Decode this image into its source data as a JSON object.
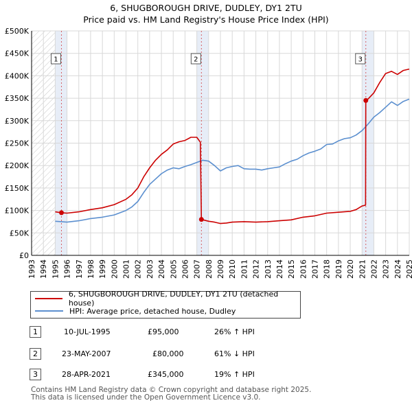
{
  "title": "6, SHUGBOROUGH DRIVE, DUDLEY, DY1 2TU",
  "subtitle": "Price paid vs. HM Land Registry's House Price Index (HPI)",
  "colors": {
    "property": "#cc0000",
    "hpi": "#5b8fcf",
    "grid": "#d8d8d8",
    "band": "#dde6f4",
    "marker": "#cc0000"
  },
  "legend": {
    "property": "6, SHUGBOROUGH DRIVE, DUDLEY, DY1 2TU (detached house)",
    "hpi": "HPI: Average price, detached house, Dudley"
  },
  "transactions": [
    {
      "num": "1",
      "date": "10-JUL-1995",
      "price": "£95,000",
      "hpi": "26% ↑ HPI"
    },
    {
      "num": "2",
      "date": "23-MAY-2007",
      "price": "£80,000",
      "hpi": "61% ↓ HPI"
    },
    {
      "num": "3",
      "date": "28-APR-2021",
      "price": "£345,000",
      "hpi": "19% ↑ HPI"
    }
  ],
  "footer": {
    "line1": "Contains HM Land Registry data © Crown copyright and database right 2025.",
    "line2": "This data is licensed under the Open Government Licence v3.0."
  },
  "chart_data": {
    "type": "line",
    "title": "6, SHUGBOROUGH DRIVE, DUDLEY, DY1 2TU",
    "subtitle": "Price paid vs. HM Land Registry's House Price Index (HPI)",
    "xlim": [
      1993,
      2025
    ],
    "ylim": [
      0,
      500000
    ],
    "x_ticks": [
      "1993",
      "1994",
      "1995",
      "1996",
      "1997",
      "1998",
      "1999",
      "2000",
      "2001",
      "2002",
      "2003",
      "2004",
      "2005",
      "2006",
      "2007",
      "2008",
      "2009",
      "2010",
      "2011",
      "2012",
      "2013",
      "2014",
      "2015",
      "2016",
      "2017",
      "2018",
      "2019",
      "2020",
      "2021",
      "2022",
      "2023",
      "2024",
      "2025"
    ],
    "y_ticks": [
      {
        "value": 0,
        "label": "£0"
      },
      {
        "value": 50000,
        "label": "£50K"
      },
      {
        "value": 100000,
        "label": "£100K"
      },
      {
        "value": 150000,
        "label": "£150K"
      },
      {
        "value": 200000,
        "label": "£200K"
      },
      {
        "value": 250000,
        "label": "£250K"
      },
      {
        "value": 300000,
        "label": "£300K"
      },
      {
        "value": 350000,
        "label": "£350K"
      },
      {
        "value": 400000,
        "label": "£400K"
      },
      {
        "value": 450000,
        "label": "£450K"
      },
      {
        "value": 500000,
        "label": "£500K"
      }
    ],
    "hatched_region": [
      1993,
      1995.0
    ],
    "shaded_bands": [
      [
        1995.0,
        1996.0
      ],
      [
        2007.0,
        2008.0
      ],
      [
        2021.0,
        2022.0
      ]
    ],
    "sales": [
      {
        "label": "1",
        "x": 1995.53,
        "y": 95000
      },
      {
        "label": "2",
        "x": 2007.39,
        "y": 80000
      },
      {
        "label": "3",
        "x": 2021.32,
        "y": 345000
      }
    ],
    "series": [
      {
        "name": "6, SHUGBOROUGH DRIVE, DUDLEY, DY1 2TU (detached house)",
        "color": "#cc0000",
        "points": [
          [
            1995.0,
            97000
          ],
          [
            1995.53,
            95000
          ],
          [
            1996.0,
            94000
          ],
          [
            1997.0,
            97000
          ],
          [
            1998.0,
            102000
          ],
          [
            1999.0,
            106000
          ],
          [
            2000.0,
            113000
          ],
          [
            2001.0,
            125000
          ],
          [
            2001.5,
            135000
          ],
          [
            2002.0,
            150000
          ],
          [
            2002.5,
            175000
          ],
          [
            2003.0,
            195000
          ],
          [
            2003.5,
            212000
          ],
          [
            2004.0,
            225000
          ],
          [
            2004.5,
            235000
          ],
          [
            2005.0,
            248000
          ],
          [
            2005.5,
            253000
          ],
          [
            2006.0,
            256000
          ],
          [
            2006.5,
            263000
          ],
          [
            2007.0,
            263000
          ],
          [
            2007.3,
            252000
          ],
          [
            2007.39,
            80000
          ],
          [
            2008.0,
            76000
          ],
          [
            2008.5,
            74000
          ],
          [
            2009.0,
            71000
          ],
          [
            2009.5,
            72000
          ],
          [
            2010.0,
            74000
          ],
          [
            2011.0,
            75000
          ],
          [
            2012.0,
            74000
          ],
          [
            2013.0,
            75000
          ],
          [
            2014.0,
            77000
          ],
          [
            2015.0,
            79000
          ],
          [
            2016.0,
            85000
          ],
          [
            2017.0,
            88000
          ],
          [
            2018.0,
            94000
          ],
          [
            2019.0,
            96000
          ],
          [
            2020.0,
            98000
          ],
          [
            2020.5,
            102000
          ],
          [
            2021.0,
            110000
          ],
          [
            2021.3,
            112000
          ],
          [
            2021.32,
            345000
          ],
          [
            2021.5,
            348000
          ],
          [
            2022.0,
            362000
          ],
          [
            2022.5,
            385000
          ],
          [
            2023.0,
            405000
          ],
          [
            2023.5,
            410000
          ],
          [
            2024.0,
            403000
          ],
          [
            2024.5,
            412000
          ],
          [
            2025.0,
            415000
          ]
        ]
      },
      {
        "name": "HPI: Average price, detached house, Dudley",
        "color": "#5b8fcf",
        "points": [
          [
            1995.0,
            76000
          ],
          [
            1996.0,
            74000
          ],
          [
            1997.0,
            77000
          ],
          [
            1998.0,
            82000
          ],
          [
            1999.0,
            85000
          ],
          [
            2000.0,
            90000
          ],
          [
            2001.0,
            100000
          ],
          [
            2001.5,
            108000
          ],
          [
            2002.0,
            120000
          ],
          [
            2002.5,
            140000
          ],
          [
            2003.0,
            158000
          ],
          [
            2003.5,
            170000
          ],
          [
            2004.0,
            182000
          ],
          [
            2004.5,
            190000
          ],
          [
            2005.0,
            195000
          ],
          [
            2005.5,
            193000
          ],
          [
            2006.0,
            198000
          ],
          [
            2006.5,
            202000
          ],
          [
            2007.0,
            207000
          ],
          [
            2007.5,
            212000
          ],
          [
            2008.0,
            210000
          ],
          [
            2008.5,
            200000
          ],
          [
            2009.0,
            188000
          ],
          [
            2009.5,
            195000
          ],
          [
            2010.0,
            198000
          ],
          [
            2010.5,
            200000
          ],
          [
            2011.0,
            193000
          ],
          [
            2011.5,
            192000
          ],
          [
            2012.0,
            192000
          ],
          [
            2012.5,
            190000
          ],
          [
            2013.0,
            193000
          ],
          [
            2013.5,
            195000
          ],
          [
            2014.0,
            197000
          ],
          [
            2014.5,
            204000
          ],
          [
            2015.0,
            210000
          ],
          [
            2015.5,
            214000
          ],
          [
            2016.0,
            222000
          ],
          [
            2016.5,
            228000
          ],
          [
            2017.0,
            232000
          ],
          [
            2017.5,
            237000
          ],
          [
            2018.0,
            247000
          ],
          [
            2018.5,
            248000
          ],
          [
            2019.0,
            255000
          ],
          [
            2019.5,
            260000
          ],
          [
            2020.0,
            262000
          ],
          [
            2020.5,
            268000
          ],
          [
            2021.0,
            278000
          ],
          [
            2021.5,
            292000
          ],
          [
            2022.0,
            308000
          ],
          [
            2022.5,
            318000
          ],
          [
            2023.0,
            330000
          ],
          [
            2023.5,
            342000
          ],
          [
            2024.0,
            334000
          ],
          [
            2024.5,
            343000
          ],
          [
            2025.0,
            348000
          ]
        ]
      }
    ]
  }
}
